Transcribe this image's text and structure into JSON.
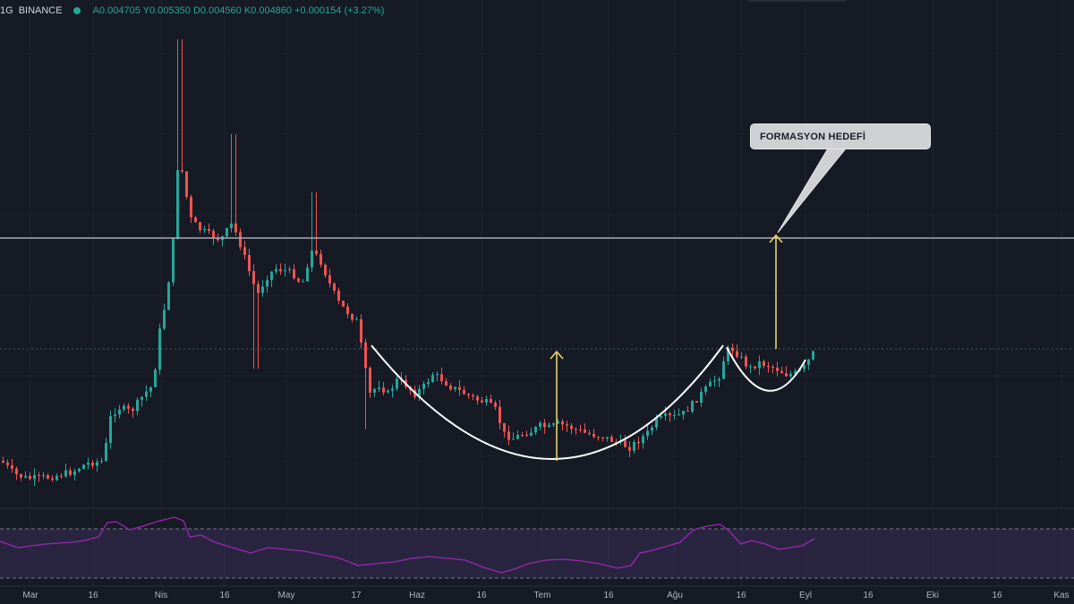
{
  "header": {
    "interval": "1G",
    "exchange": "BINANCE",
    "ohlc_text": "A0.004705 Y0.005350 D0.004560 K0.004860 +0.000154 (+3.27%)"
  },
  "annotation": {
    "text": "FORMASYON HEDEFİ"
  },
  "colors": {
    "background": "#161a25",
    "up": "#26a69a",
    "down": "#ef5350",
    "rsi": "#9c27b0",
    "arrow": "#e8d26a",
    "level": "#9598a1"
  },
  "chart_data": {
    "type": "candlestick",
    "xlabels": [
      "Mar",
      "16",
      "Nis",
      "16",
      "May",
      "17",
      "Haz",
      "16",
      "Tem",
      "16",
      "Ağu",
      "16",
      "Eyl",
      "16",
      "Eki",
      "16",
      "Kas"
    ],
    "y_scale": {
      "min": 0.0015,
      "max": 0.0105
    },
    "resistance_level": 0.00775,
    "rsi": {
      "upper": 70,
      "lower": 30
    }
  }
}
